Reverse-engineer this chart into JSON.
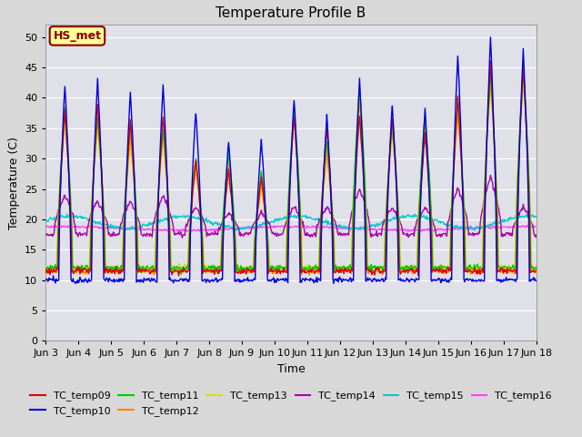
{
  "title": "Temperature Profile B",
  "xlabel": "Time",
  "ylabel": "Temperature (C)",
  "ylim": [
    0,
    52
  ],
  "background_color": "#d8d8d8",
  "plot_bg_color": "#e0e0e8",
  "annotation_text": "HS_met",
  "annotation_bg": "#ffff99",
  "annotation_border": "#8b0000",
  "series_colors": {
    "TC_temp09": "#dd0000",
    "TC_temp10": "#0000dd",
    "TC_temp11": "#00cc00",
    "TC_temp12": "#ff8800",
    "TC_temp13": "#dddd00",
    "TC_temp14": "#aa00aa",
    "TC_temp15": "#00cccc",
    "TC_temp16": "#ff44ff"
  },
  "xtick_labels": [
    "Jun 3",
    "Jun 4",
    "Jun 5",
    "Jun 6",
    "Jun 7",
    "Jun 8",
    "Jun 9",
    "Jun 10",
    "Jun 11",
    "Jun 12",
    "Jun 13",
    "Jun 14",
    "Jun 15",
    "Jun 16",
    "Jun 17",
    "Jun 18"
  ],
  "ytick_values": [
    0,
    5,
    10,
    15,
    20,
    25,
    30,
    35,
    40,
    45,
    50
  ],
  "figsize": [
    6.4,
    4.8
  ],
  "dpi": 100
}
